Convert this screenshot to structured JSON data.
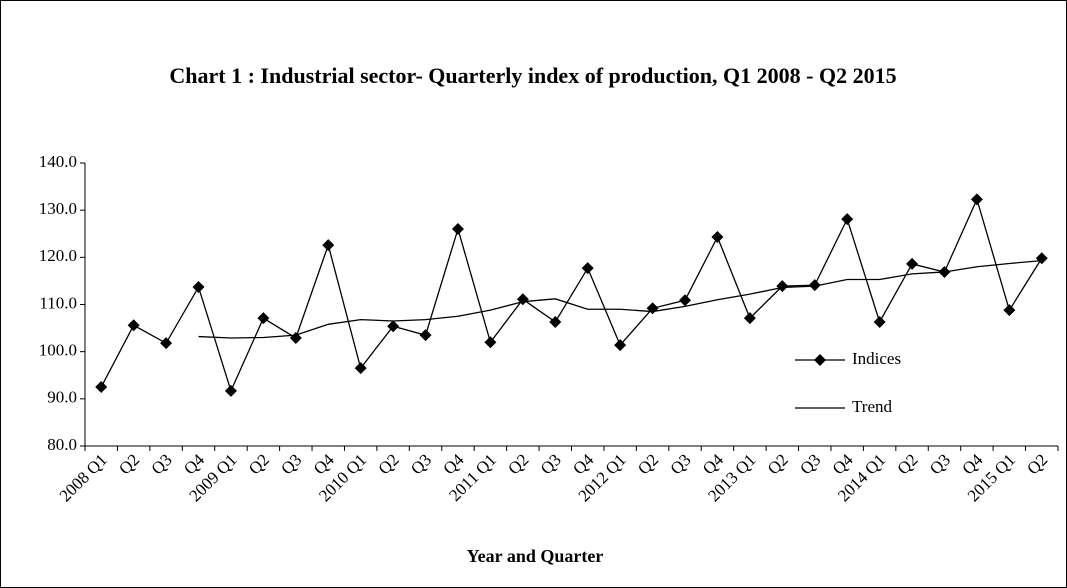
{
  "chart_data": {
    "type": "line",
    "title": "Chart 1 : Industrial sector- Quarterly index of production, Q1 2008 - Q2 2015",
    "x_label": "Year and Quarter",
    "categories": [
      "2008 Q1",
      "Q2",
      "Q3",
      "Q4",
      "2009 Q1",
      "Q2",
      "Q3",
      "Q4",
      "2010 Q1",
      "Q2",
      "Q3",
      "Q4",
      "2011 Q1",
      "Q2",
      "Q3",
      "Q4",
      "2012 Q1",
      "Q2",
      "Q3",
      "Q4",
      "2013 Q1",
      "Q2",
      "Q3",
      "Q4",
      "2014 Q1",
      "Q2",
      "Q3",
      "Q4",
      "2015 Q1",
      "Q2"
    ],
    "series": [
      {
        "name": "Indices",
        "color": "#000000",
        "marker": "diamond",
        "values": [
          92.5,
          105.6,
          101.8,
          113.7,
          91.7,
          107.1,
          102.9,
          122.6,
          96.5,
          105.4,
          103.5,
          126.0,
          102.0,
          111.1,
          106.3,
          117.7,
          101.4,
          109.2,
          110.9,
          124.3,
          107.1,
          113.9,
          114.1,
          128.1,
          106.3,
          118.6,
          116.9,
          132.3,
          108.8,
          119.8
        ]
      },
      {
        "name": "Trend",
        "color": "#000000",
        "values": [
          null,
          null,
          null,
          103.2,
          102.9,
          103.0,
          103.5,
          105.8,
          106.8,
          106.5,
          106.8,
          107.5,
          108.8,
          110.6,
          111.2,
          109.0,
          109.0,
          108.5,
          109.6,
          111.0,
          112.2,
          113.6,
          113.9,
          115.3,
          115.3,
          116.5,
          116.9,
          118.0,
          118.7,
          119.3
        ]
      }
    ],
    "ylim": [
      80,
      140
    ],
    "yticks": [
      {
        "value": 80,
        "label": "80.0"
      },
      {
        "value": 90,
        "label": "90.0"
      },
      {
        "value": 100,
        "label": "100.0"
      },
      {
        "value": 110,
        "label": "110.0"
      },
      {
        "value": 120,
        "label": "120.0"
      },
      {
        "value": 130,
        "label": "130.0"
      },
      {
        "value": 140,
        "label": "140.0"
      }
    ],
    "legend": "right",
    "grid": false
  }
}
